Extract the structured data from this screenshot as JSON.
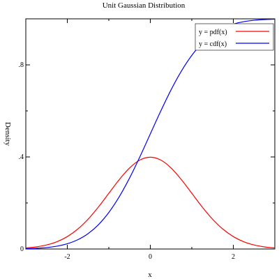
{
  "chart_data": {
    "type": "line",
    "title": "Unit Gaussian Distribution",
    "xlabel": "x",
    "ylabel": "Density",
    "xlim": [
      -3,
      3
    ],
    "ylim": [
      0,
      1
    ],
    "grid": false,
    "legend_position": "top-right",
    "x_ticks": [
      -2,
      0,
      2
    ],
    "x_tick_labels": [
      "-2",
      "0",
      "2"
    ],
    "y_ticks": [
      0,
      0.4,
      0.8
    ],
    "y_tick_labels": [
      "0",
      ".4",
      ".8"
    ],
    "series": [
      {
        "name": "y = pdf(x)",
        "color": "#ff0000",
        "x": [
          -3,
          -2.75,
          -2.5,
          -2.25,
          -2,
          -1.75,
          -1.5,
          -1.25,
          -1,
          -0.75,
          -0.5,
          -0.25,
          0,
          0.25,
          0.5,
          0.75,
          1,
          1.25,
          1.5,
          1.75,
          2,
          2.25,
          2.5,
          2.75,
          3
        ],
        "y": [
          0.0044,
          0.0091,
          0.0175,
          0.0317,
          0.054,
          0.0863,
          0.1295,
          0.1826,
          0.242,
          0.3011,
          0.3521,
          0.3867,
          0.3989,
          0.3867,
          0.3521,
          0.3011,
          0.242,
          0.1826,
          0.1295,
          0.0863,
          0.054,
          0.0317,
          0.0175,
          0.0091,
          0.0044
        ]
      },
      {
        "name": "y = cdf(x)",
        "color": "#0000ff",
        "x": [
          -3,
          -2.75,
          -2.5,
          -2.25,
          -2,
          -1.75,
          -1.5,
          -1.25,
          -1,
          -0.75,
          -0.5,
          -0.25,
          0,
          0.25,
          0.5,
          0.75,
          1,
          1.25,
          1.5,
          1.75,
          2,
          2.25,
          2.5,
          2.75,
          3
        ],
        "y": [
          0.0013,
          0.003,
          0.0062,
          0.0122,
          0.0228,
          0.0401,
          0.0668,
          0.1056,
          0.1587,
          0.2266,
          0.3085,
          0.4013,
          0.5,
          0.5987,
          0.6915,
          0.7734,
          0.8413,
          0.8944,
          0.9332,
          0.9599,
          0.9772,
          0.9878,
          0.9938,
          0.997,
          0.9987
        ]
      }
    ]
  }
}
